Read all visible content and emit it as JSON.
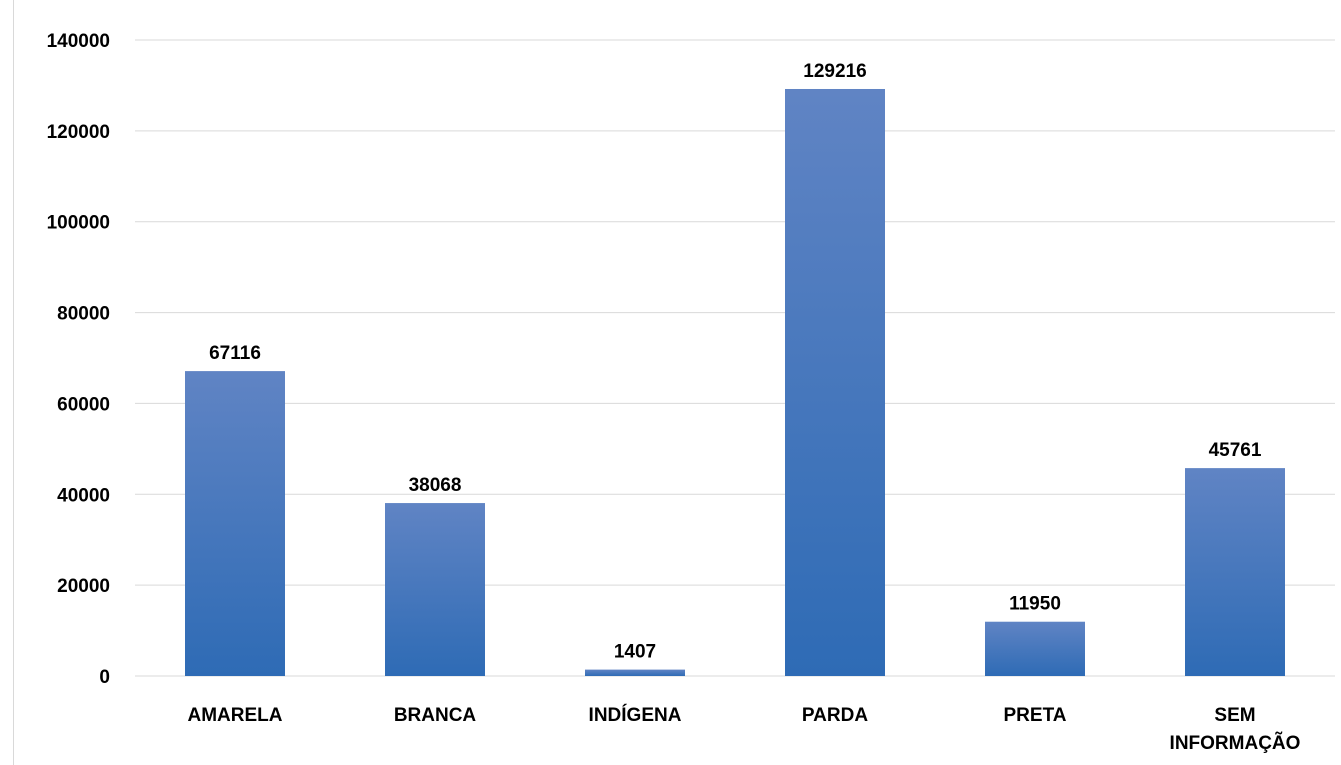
{
  "chart_data": {
    "type": "bar",
    "title": "",
    "xlabel": "",
    "ylabel": "",
    "categories": [
      "AMARELA",
      "BRANCA",
      "INDÍGENA",
      "PARDA",
      "PRETA",
      "SEM INFORMAÇÃO"
    ],
    "category_lines": [
      [
        "AMARELA"
      ],
      [
        "BRANCA"
      ],
      [
        "INDÍGENA"
      ],
      [
        "PARDA"
      ],
      [
        "PRETA"
      ],
      [
        "SEM",
        "INFORMAÇÃO"
      ]
    ],
    "values": [
      67116,
      38068,
      1407,
      129216,
      11950,
      45761
    ],
    "data_labels": [
      "67116",
      "38068",
      "1407",
      "129216",
      "11950",
      "45761"
    ],
    "ylim": [
      0,
      140000
    ],
    "yticks": [
      0,
      20000,
      40000,
      60000,
      80000,
      100000,
      120000,
      140000
    ],
    "ytick_labels": [
      "0",
      "20000",
      "40000",
      "60000",
      "80000",
      "100000",
      "120000",
      "140000"
    ],
    "grid": true,
    "legend": "none",
    "colors": {
      "bar_top": "#6084c4",
      "bar_bottom": "#2e6bb5",
      "grid": "#d9d9d9",
      "text": "#000000"
    }
  }
}
